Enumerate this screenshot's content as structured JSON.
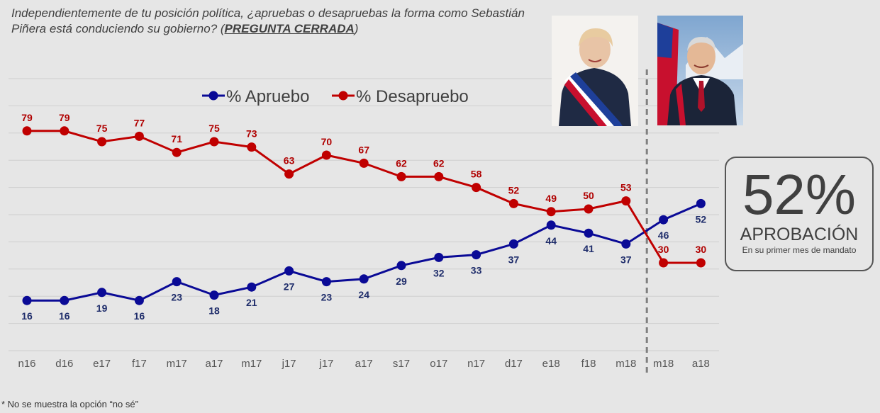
{
  "question": {
    "text": "Independientemente de tu posición política, ¿apruebas o desapruebas la forma como Sebastián Piñera está conduciendo su gobierno? (",
    "strong": "PREGUNTA CERRADA",
    "end": ")"
  },
  "callout": {
    "value": "52%",
    "label": "APROBACIÓN",
    "sub": "En su primer mes de mandato"
  },
  "footnote": "* No se muestra la opción “no sé”",
  "colors": {
    "approve": "#0a0a96",
    "disapprove": "#c00000",
    "approve_label": "#1f2d6b",
    "disapprove_label": "#b00000"
  },
  "chart_data": {
    "type": "line",
    "categories": [
      "n16",
      "d16",
      "e17",
      "f17",
      "m17",
      "a17",
      "m17",
      "j17",
      "j17",
      "a17",
      "s17",
      "o17",
      "n17",
      "d17",
      "e18",
      "f18",
      "m18",
      "m18",
      "a18"
    ],
    "series": [
      {
        "name": "% Apruebo",
        "values": [
          16,
          16,
          19,
          16,
          23,
          18,
          21,
          27,
          23,
          24,
          29,
          32,
          33,
          37,
          44,
          41,
          37,
          46,
          52
        ]
      },
      {
        "name": "% Desapruebo",
        "values": [
          79,
          79,
          75,
          77,
          71,
          75,
          73,
          63,
          70,
          67,
          62,
          62,
          58,
          52,
          49,
          50,
          53,
          30,
          30
        ]
      }
    ],
    "legend": "top-center",
    "divider_after_index": 16,
    "grid": true
  }
}
